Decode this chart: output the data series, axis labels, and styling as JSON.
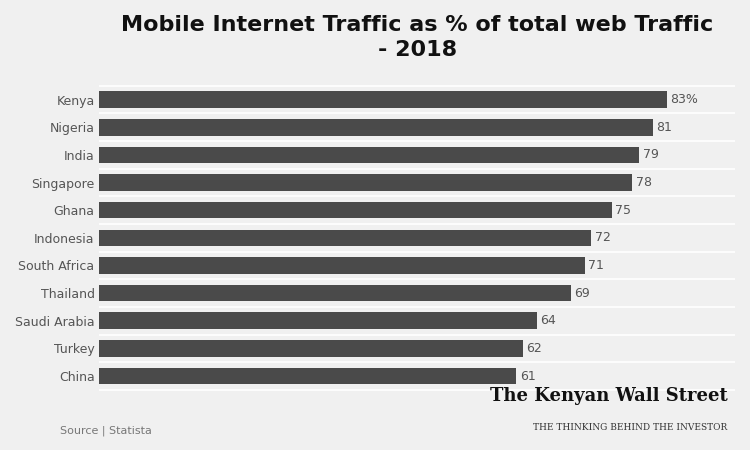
{
  "title": "Mobile Internet Traffic as % of total web Traffic\n- 2018",
  "categories": [
    "Kenya",
    "Nigeria",
    "India",
    "Singapore",
    "Ghana",
    "Indonesia",
    "South Africa",
    "Thailand",
    "Saudi Arabia",
    "Turkey",
    "China"
  ],
  "values": [
    83,
    81,
    79,
    78,
    75,
    72,
    71,
    69,
    64,
    62,
    61
  ],
  "labels": [
    "83%",
    "81",
    "79",
    "78",
    "75",
    "72",
    "71",
    "69",
    "64",
    "62",
    "61"
  ],
  "bar_color": "#4a4a4a",
  "background_color": "#f0f0f0",
  "text_color": "#555555",
  "label_color": "#555555",
  "title_color": "#111111",
  "source_text": "Source | Statista",
  "watermark_line1": "The Kenyan Wall Street",
  "watermark_line2": "THE THINKING BEHIND THE INVESTOR",
  "xlim": [
    0,
    93
  ],
  "title_fontsize": 16,
  "label_fontsize": 9,
  "tick_fontsize": 9
}
